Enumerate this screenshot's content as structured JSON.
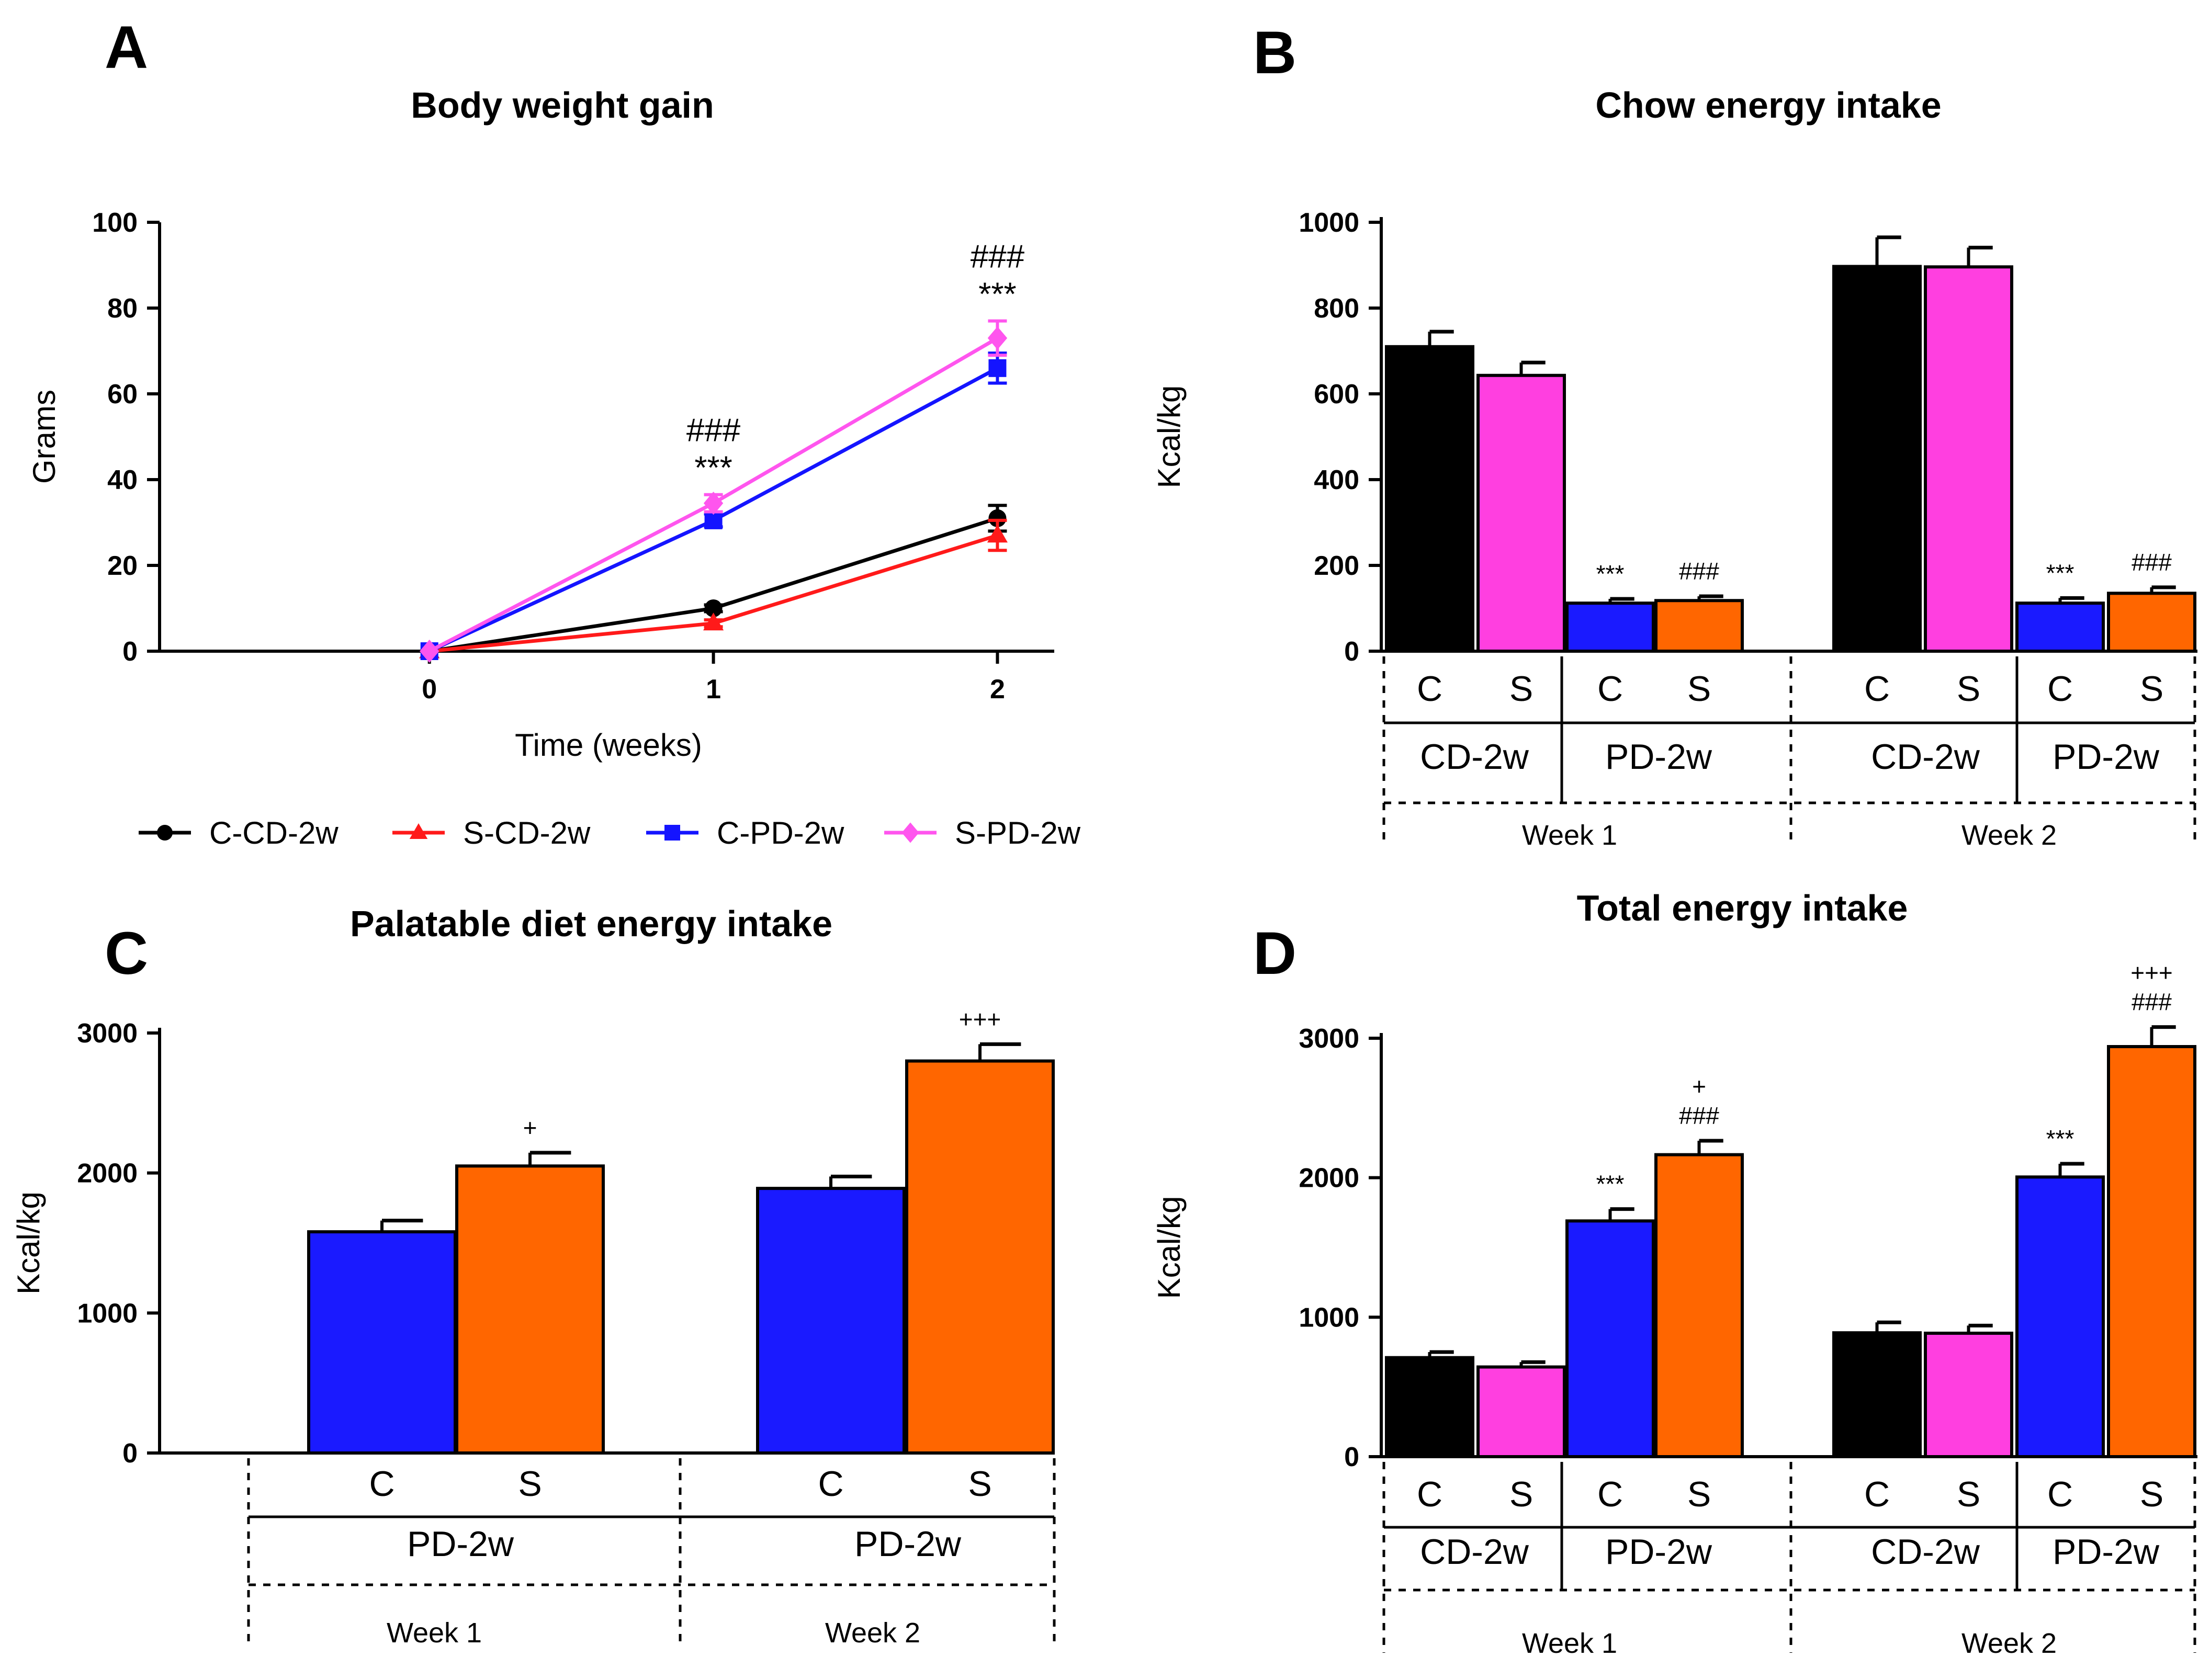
{
  "figure": {
    "panels": {
      "a": "A",
      "b": "B",
      "c": "C",
      "d": "D"
    }
  },
  "colors": {
    "C-CD-2w": "#000000",
    "S-CD-2w": "#ff1a1a",
    "C-PD-2w": "#1414ff",
    "S-PD-2w": "#ff55ee",
    "bar_C_CD": "#000000",
    "bar_S_CD": "#ff3fe0",
    "bar_C_PD": "#1a1aff",
    "bar_S_PD": "#ff6600"
  },
  "chart_data": [
    {
      "id": "A",
      "type": "line",
      "title": "Body weight gain",
      "xlabel": "Time (weeks)",
      "ylabel": "Grams",
      "x": [
        0,
        1,
        2
      ],
      "xlim": [
        -0.95,
        2.2
      ],
      "ylim": [
        0,
        100
      ],
      "yticks": [
        "0",
        "20",
        "40",
        "60",
        "80",
        "100"
      ],
      "xticks": [
        "0",
        "1",
        "2"
      ],
      "series": [
        {
          "name": "C-CD-2w",
          "marker": "circle",
          "values": [
            0,
            10,
            31
          ],
          "errors": [
            0,
            0.8,
            3
          ]
        },
        {
          "name": "S-CD-2w",
          "marker": "triangle",
          "values": [
            0,
            6.5,
            27
          ],
          "errors": [
            0,
            0.8,
            3.5
          ]
        },
        {
          "name": "C-PD-2w",
          "marker": "square",
          "values": [
            0,
            30.5,
            66
          ],
          "errors": [
            0,
            1.5,
            3.5
          ]
        },
        {
          "name": "S-PD-2w",
          "marker": "diamond",
          "values": [
            0,
            34.5,
            73
          ],
          "errors": [
            0,
            2,
            4
          ]
        }
      ],
      "annotations": [
        {
          "x": 1,
          "lines": [
            "###",
            "***"
          ]
        },
        {
          "x": 2,
          "lines": [
            "###",
            "***"
          ]
        }
      ],
      "legend": [
        "C-CD-2w",
        "S-CD-2w",
        "C-PD-2w",
        "S-PD-2w"
      ]
    },
    {
      "id": "B",
      "type": "bar",
      "title": "Chow energy intake",
      "ylabel": "Kcal/kg",
      "ylim": [
        0,
        1000
      ],
      "yticks": [
        "0",
        "200",
        "400",
        "600",
        "800",
        "1000"
      ],
      "bars": [
        {
          "week": "Week 1",
          "diet": "CD-2w",
          "group": "C",
          "value": 710,
          "error": 35,
          "sig": ""
        },
        {
          "week": "Week 1",
          "diet": "CD-2w",
          "group": "S",
          "value": 643,
          "error": 30,
          "sig": ""
        },
        {
          "week": "Week 1",
          "diet": "PD-2w",
          "group": "C",
          "value": 112,
          "error": 10,
          "sig": "***"
        },
        {
          "week": "Week 1",
          "diet": "PD-2w",
          "group": "S",
          "value": 118,
          "error": 10,
          "sig": "###"
        },
        {
          "week": "Week 2",
          "diet": "CD-2w",
          "group": "C",
          "value": 897,
          "error": 68,
          "sig": ""
        },
        {
          "week": "Week 2",
          "diet": "CD-2w",
          "group": "S",
          "value": 896,
          "error": 45,
          "sig": ""
        },
        {
          "week": "Week 2",
          "diet": "PD-2w",
          "group": "C",
          "value": 112,
          "error": 12,
          "sig": "***"
        },
        {
          "week": "Week 2",
          "diet": "PD-2w",
          "group": "S",
          "value": 135,
          "error": 14,
          "sig": "###"
        }
      ]
    },
    {
      "id": "C",
      "type": "bar",
      "title": "Palatable diet energy intake",
      "ylabel": "Kcal/kg",
      "ylim": [
        0,
        3000
      ],
      "yticks": [
        "0",
        "1000",
        "2000",
        "3000"
      ],
      "bars": [
        {
          "week": "Week 1",
          "diet": "PD-2w",
          "group": "C",
          "value": 1580,
          "error": 80,
          "sig": ""
        },
        {
          "week": "Week 1",
          "diet": "PD-2w",
          "group": "S",
          "value": 2050,
          "error": 95,
          "sig": "+"
        },
        {
          "week": "Week 2",
          "diet": "PD-2w",
          "group": "C",
          "value": 1890,
          "error": 85,
          "sig": ""
        },
        {
          "week": "Week 2",
          "diet": "PD-2w",
          "group": "S",
          "value": 2800,
          "error": 120,
          "sig": "+++"
        }
      ]
    },
    {
      "id": "D",
      "type": "bar",
      "title": "Total energy intake",
      "ylabel": "Kcal/kg",
      "ylim": [
        0,
        3000
      ],
      "yticks": [
        "0",
        "1000",
        "2000",
        "3000"
      ],
      "bars": [
        {
          "week": "Week 1",
          "diet": "CD-2w",
          "group": "C",
          "value": 710,
          "error": 40,
          "sig": ""
        },
        {
          "week": "Week 1",
          "diet": "CD-2w",
          "group": "S",
          "value": 643,
          "error": 35,
          "sig": ""
        },
        {
          "week": "Week 1",
          "diet": "PD-2w",
          "group": "C",
          "value": 1690,
          "error": 85,
          "sig": "***"
        },
        {
          "week": "Week 1",
          "diet": "PD-2w",
          "group": "S",
          "value": 2165,
          "error": 100,
          "sig": "+\n###"
        },
        {
          "week": "Week 2",
          "diet": "CD-2w",
          "group": "C",
          "value": 888,
          "error": 75,
          "sig": ""
        },
        {
          "week": "Week 2",
          "diet": "CD-2w",
          "group": "S",
          "value": 885,
          "error": 55,
          "sig": ""
        },
        {
          "week": "Week 2",
          "diet": "PD-2w",
          "group": "C",
          "value": 2005,
          "error": 95,
          "sig": "***"
        },
        {
          "week": "Week 2",
          "diet": "PD-2w",
          "group": "S",
          "value": 2940,
          "error": 140,
          "sig": "+++\n###"
        }
      ]
    }
  ]
}
